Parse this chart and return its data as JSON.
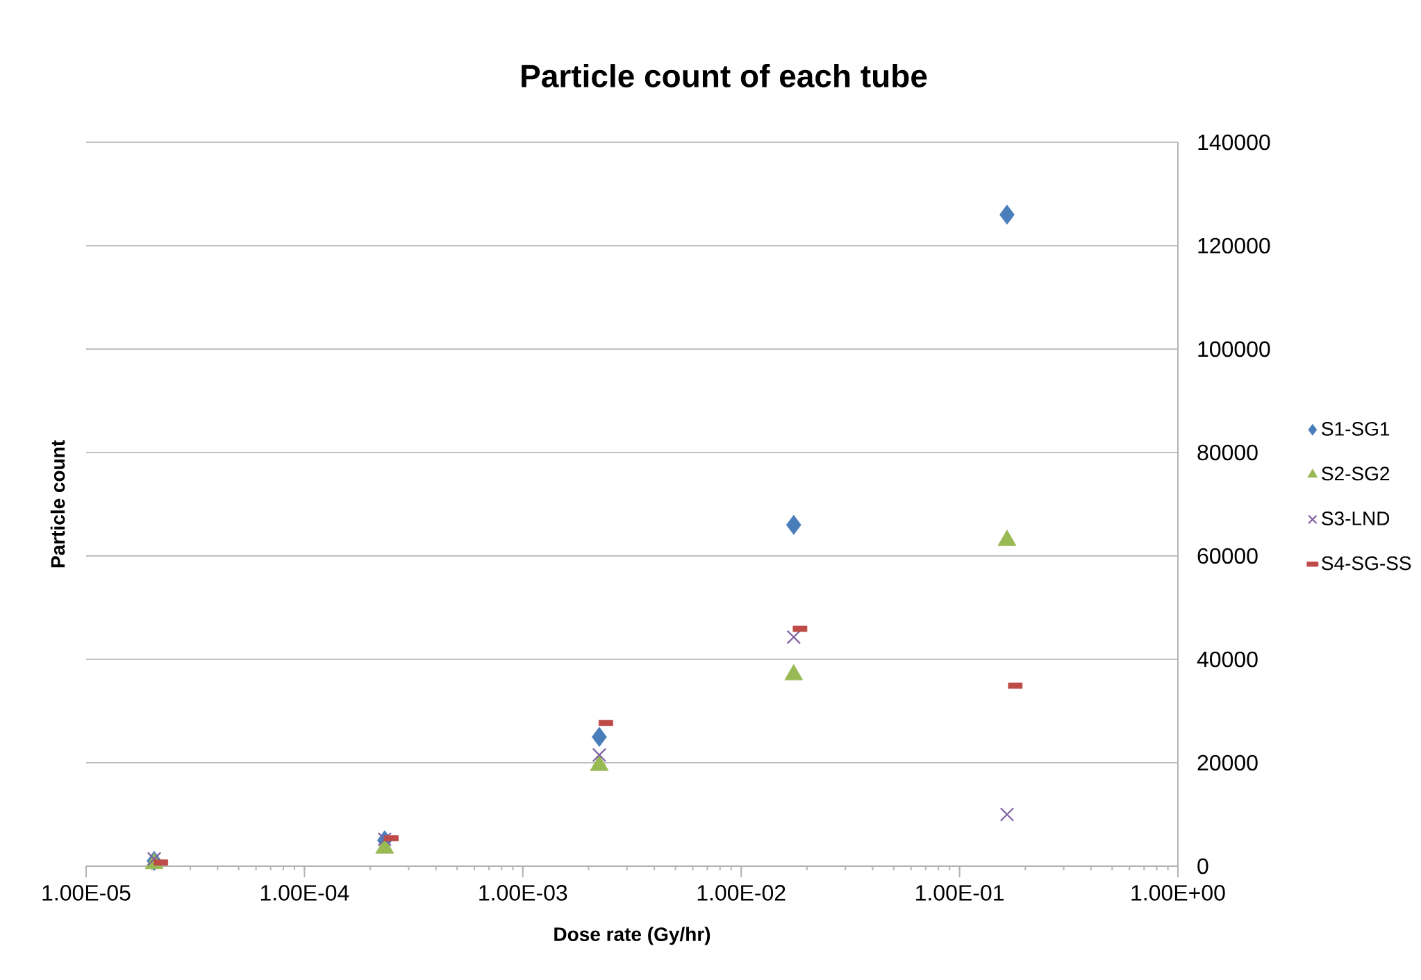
{
  "chart_data": {
    "type": "scatter",
    "title": "Particle count of each tube",
    "xlabel": "Dose rate (Gy/hr)",
    "ylabel": "Particle count",
    "log": "x",
    "grid": "y",
    "legend": "right",
    "xlim": [
      1e-05,
      1
    ],
    "xticks": [
      {
        "value": 1e-05,
        "label": "1.00E-05"
      },
      {
        "value": 0.0001,
        "label": "1.00E-04"
      },
      {
        "value": 0.001,
        "label": "1.00E-03"
      },
      {
        "value": 0.01,
        "label": "1.00E-02"
      },
      {
        "value": 0.1,
        "label": "1.00E-01"
      },
      {
        "value": 1,
        "label": "1.00E+00"
      }
    ],
    "ylim": [
      0,
      140000
    ],
    "yticks": [
      0,
      20000,
      40000,
      60000,
      80000,
      100000,
      120000,
      140000
    ],
    "series": [
      {
        "name": "S1-SG1",
        "color": "#4a7ebb",
        "marker": "diamond",
        "x": [
          2.05e-05,
          0.000233,
          0.00224,
          0.0174,
          0.165
        ],
        "values": [
          1000,
          5000,
          25000,
          66000,
          126000
        ]
      },
      {
        "name": "S2-SG2",
        "color": "#98b954",
        "marker": "triangle",
        "x": [
          2.05e-05,
          0.000233,
          0.00224,
          0.0174,
          0.165
        ],
        "values": [
          500,
          3500,
          19500,
          37000,
          63000
        ]
      },
      {
        "name": "S3-LND",
        "color": "#7e60a0",
        "marker": "cross",
        "x": [
          2.05e-05,
          0.000233,
          0.00224,
          0.0174,
          0.165
        ],
        "values": [
          1400,
          5200,
          21500,
          44300,
          10000
        ]
      },
      {
        "name": "S4-SG-SS",
        "color": "#be4b48",
        "marker": "square",
        "x": [
          2.2e-05,
          0.00025,
          0.0024,
          0.0186,
          0.18
        ],
        "values": [
          700,
          5400,
          27700,
          45900,
          34900
        ]
      }
    ]
  }
}
